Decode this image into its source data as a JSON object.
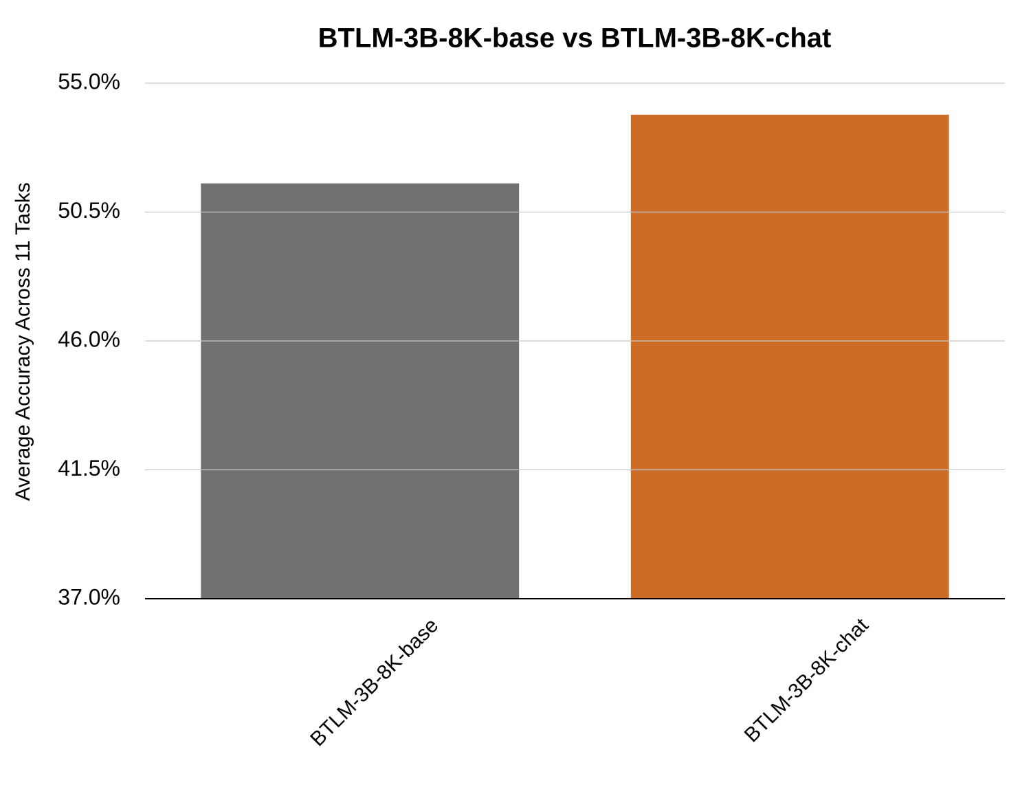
{
  "chart_data": {
    "type": "bar",
    "title": "BTLM-3B-8K-base vs BTLM-3B-8K-chat",
    "y_label": "Average Accuracy Across 11 Tasks",
    "categories": [
      "BTLM-3B-8K-base",
      "BTLM-3B-8K-chat"
    ],
    "values": [
      51.5,
      53.9
    ],
    "colors": [
      "#6f7270",
      "#cb6c27"
    ],
    "ylim": [
      37,
      55
    ],
    "yticks": [
      {
        "value": 37,
        "label": "37.0%"
      },
      {
        "value": 41.5,
        "label": "41.5%"
      },
      {
        "value": 46,
        "label": "46.0%"
      },
      {
        "value": 50.5,
        "label": "50.5%"
      },
      {
        "value": 55,
        "label": "55.0%"
      }
    ],
    "grid": true
  }
}
